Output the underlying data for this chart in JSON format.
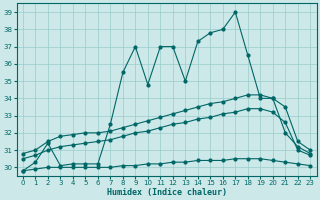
{
  "xlabel": "Humidex (Indice chaleur)",
  "xlim": [
    -0.5,
    23.5
  ],
  "ylim": [
    29.5,
    39.5
  ],
  "yticks": [
    30,
    31,
    32,
    33,
    34,
    35,
    36,
    37,
    38,
    39
  ],
  "xticks": [
    0,
    1,
    2,
    3,
    4,
    5,
    6,
    7,
    8,
    9,
    10,
    11,
    12,
    13,
    14,
    15,
    16,
    17,
    18,
    19,
    20,
    21,
    22,
    23
  ],
  "bg_color": "#cce8e8",
  "grid_color": "#99cccc",
  "line_color": "#006666",
  "series1_y": [
    29.8,
    30.3,
    31.4,
    30.1,
    30.2,
    30.2,
    30.2,
    32.5,
    35.5,
    37.0,
    34.8,
    37.0,
    37.0,
    35.0,
    37.3,
    37.8,
    38.0,
    39.0,
    36.5,
    34.0,
    34.0,
    32.0,
    31.2,
    30.8
  ],
  "series2_y": [
    30.8,
    31.0,
    31.5,
    31.8,
    31.9,
    32.0,
    32.0,
    32.1,
    32.3,
    32.5,
    32.7,
    32.9,
    33.1,
    33.3,
    33.5,
    33.7,
    33.8,
    34.0,
    34.2,
    34.2,
    34.0,
    33.5,
    31.5,
    31.0
  ],
  "series3_y": [
    30.5,
    30.7,
    31.0,
    31.2,
    31.3,
    31.4,
    31.5,
    31.6,
    31.8,
    32.0,
    32.1,
    32.3,
    32.5,
    32.6,
    32.8,
    32.9,
    33.1,
    33.2,
    33.4,
    33.4,
    33.2,
    32.6,
    31.0,
    30.7
  ],
  "series4_y": [
    29.8,
    29.9,
    30.0,
    30.0,
    30.0,
    30.0,
    30.0,
    30.0,
    30.1,
    30.1,
    30.2,
    30.2,
    30.3,
    30.3,
    30.4,
    30.4,
    30.4,
    30.5,
    30.5,
    30.5,
    30.4,
    30.3,
    30.2,
    30.1
  ]
}
